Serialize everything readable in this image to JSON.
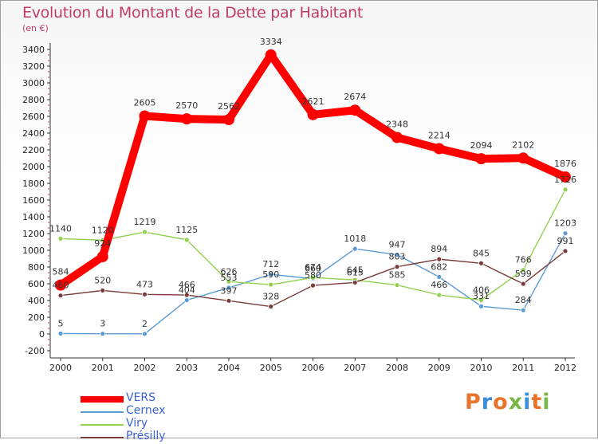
{
  "title": "Evolution du Montant de la Dette par Habitant",
  "subtitle": "(en €)",
  "brand": {
    "text": "Proxiti",
    "colors": [
      "#e8732a",
      "#3b8fd8",
      "#e8732a",
      "#7ab648",
      "#3b8fd8",
      "#e8732a",
      "#7ab648"
    ]
  },
  "chart_data": {
    "type": "line",
    "x": [
      "2000",
      "2001",
      "2002",
      "2003",
      "2004",
      "2005",
      "2006",
      "2007",
      "2008",
      "2009",
      "2010",
      "2011",
      "2012"
    ],
    "ylim": [
      -200,
      3400
    ],
    "yticks": [
      -200,
      0,
      200,
      400,
      600,
      800,
      1000,
      1200,
      1400,
      1600,
      1800,
      2000,
      2200,
      2400,
      2600,
      2800,
      3000,
      3200,
      3400
    ],
    "grid": false,
    "legend_position": "bottom-left",
    "series": [
      {
        "name": "VERS",
        "color": "#ff0000",
        "emphasis": true,
        "values": [
          584,
          924,
          2605,
          2570,
          2562,
          3334,
          2621,
          2674,
          2348,
          2214,
          2094,
          2102,
          1876
        ],
        "labels": [
          "584",
          "924",
          "2605",
          "2570",
          "2562",
          "3334",
          "2621",
          "2674",
          "2348",
          "2214",
          "2094",
          "2102",
          "1876"
        ]
      },
      {
        "name": "Cernex",
        "color": "#5b9bd5",
        "values": [
          5,
          3,
          2,
          404,
          553,
          712,
          660,
          1018,
          947,
          682,
          331,
          284,
          1203
        ],
        "labels": [
          "5",
          "3",
          "2",
          "404",
          "553",
          "712",
          "660",
          "1018",
          "947",
          "682",
          "331",
          "284",
          "1203"
        ]
      },
      {
        "name": "Viry",
        "color": "#92d050",
        "values": [
          1140,
          1120,
          1219,
          1125,
          626,
          590,
          674,
          645,
          585,
          466,
          406,
          766,
          1726
        ],
        "labels": [
          "1140",
          "1120",
          "1219",
          "1125",
          "626",
          "590",
          "674",
          "645",
          "585",
          "466",
          "406",
          "766",
          "1726"
        ]
      },
      {
        "name": "Présilly",
        "color": "#7a3b3b",
        "values": [
          460,
          520,
          473,
          466,
          397,
          328,
          580,
          615,
          803,
          894,
          845,
          599,
          991
        ],
        "labels": [
          "460",
          "520",
          "473",
          "466",
          "397",
          "328",
          "580",
          "615",
          "803",
          "894",
          "845",
          "599",
          "991"
        ]
      }
    ]
  }
}
